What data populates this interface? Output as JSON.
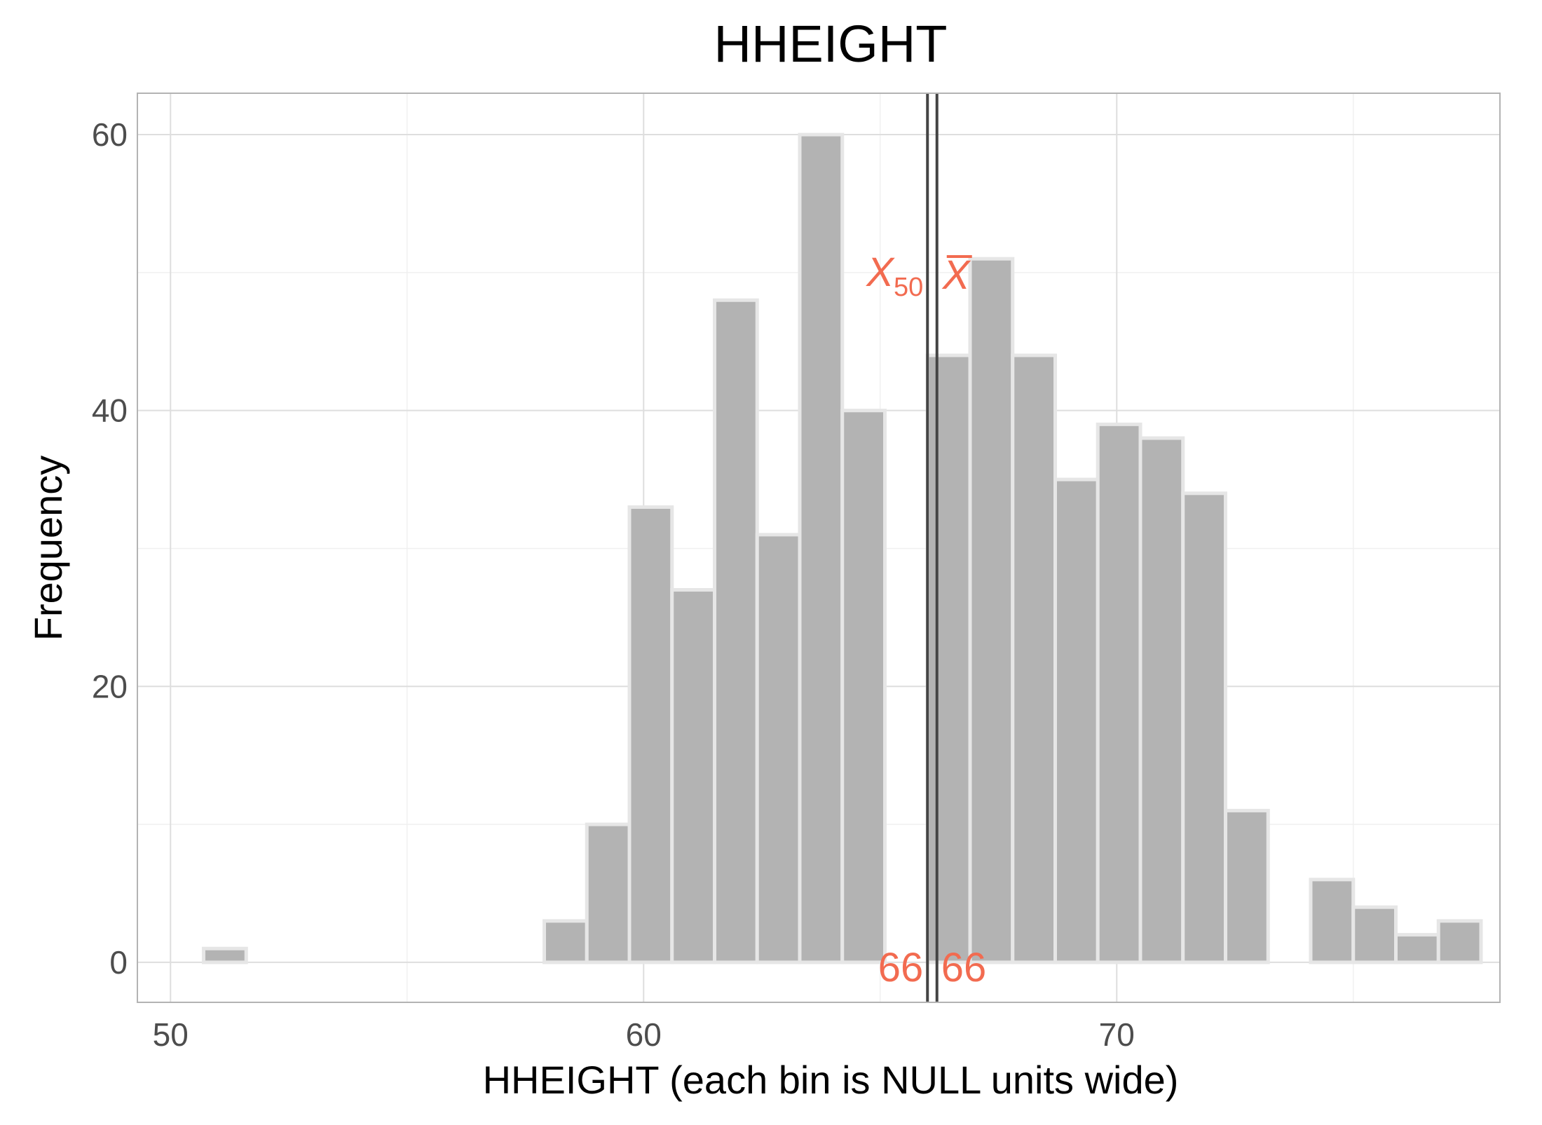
{
  "chart_data": {
    "type": "bar",
    "title": "HHEIGHT",
    "xlabel": "HHEIGHT (each bin is NULL units wide)",
    "ylabel": "Frequency",
    "xlim": [
      49.3,
      78.1
    ],
    "ylim": [
      -2.9,
      63
    ],
    "x_ticks": [
      {
        "value": 50,
        "label": "50"
      },
      {
        "value": 60,
        "label": "60"
      },
      {
        "value": 70,
        "label": "70"
      }
    ],
    "y_ticks": [
      {
        "value": 0,
        "label": "0"
      },
      {
        "value": 20,
        "label": "20"
      },
      {
        "value": 40,
        "label": "40"
      },
      {
        "value": 60,
        "label": "60"
      }
    ],
    "x_minor_grid": [
      55,
      65,
      75
    ],
    "y_minor_grid": [
      10,
      30,
      50
    ],
    "bin_width": 0.9,
    "bins": [
      {
        "x0": 50.7,
        "x1": 51.6,
        "count": 1
      },
      {
        "x0": 51.6,
        "x1": 52.5,
        "count": 0
      },
      {
        "x0": 52.5,
        "x1": 53.4,
        "count": 0
      },
      {
        "x0": 53.4,
        "x1": 54.3,
        "count": 0
      },
      {
        "x0": 54.3,
        "x1": 55.2,
        "count": 0
      },
      {
        "x0": 55.2,
        "x1": 56.1,
        "count": 0
      },
      {
        "x0": 56.1,
        "x1": 57.0,
        "count": 0
      },
      {
        "x0": 57.0,
        "x1": 57.9,
        "count": 0
      },
      {
        "x0": 57.9,
        "x1": 58.8,
        "count": 3
      },
      {
        "x0": 58.8,
        "x1": 59.7,
        "count": 10
      },
      {
        "x0": 59.7,
        "x1": 60.6,
        "count": 33
      },
      {
        "x0": 60.6,
        "x1": 61.5,
        "count": 27
      },
      {
        "x0": 61.5,
        "x1": 62.4,
        "count": 48
      },
      {
        "x0": 62.4,
        "x1": 63.3,
        "count": 31
      },
      {
        "x0": 63.3,
        "x1": 64.2,
        "count": 60
      },
      {
        "x0": 64.2,
        "x1": 65.1,
        "count": 40
      },
      {
        "x0": 65.1,
        "x1": 66.0,
        "count": 0
      },
      {
        "x0": 66.0,
        "x1": 66.9,
        "count": 44
      },
      {
        "x0": 66.9,
        "x1": 67.8,
        "count": 51
      },
      {
        "x0": 67.8,
        "x1": 68.7,
        "count": 44
      },
      {
        "x0": 68.7,
        "x1": 69.6,
        "count": 35
      },
      {
        "x0": 69.6,
        "x1": 70.5,
        "count": 39
      },
      {
        "x0": 70.5,
        "x1": 71.4,
        "count": 38
      },
      {
        "x0": 71.4,
        "x1": 72.3,
        "count": 34
      },
      {
        "x0": 72.3,
        "x1": 73.2,
        "count": 11
      },
      {
        "x0": 73.2,
        "x1": 74.1,
        "count": 0
      },
      {
        "x0": 74.1,
        "x1": 75.0,
        "count": 6
      },
      {
        "x0": 75.0,
        "x1": 75.9,
        "count": 4
      },
      {
        "x0": 75.9,
        "x1": 76.8,
        "count": 2
      },
      {
        "x0": 76.8,
        "x1": 77.7,
        "count": 3
      }
    ],
    "reference_lines": [
      {
        "stat": "median",
        "x": 66.0,
        "symbol": "X",
        "subscript": "50",
        "value_label": "66"
      },
      {
        "stat": "mean",
        "x": 66.2,
        "symbol": "X",
        "overline": true,
        "value_label": "66"
      }
    ],
    "colors": {
      "bar_fill": "#b3b3b3",
      "bar_outline": "#e6e6e6",
      "reference_line": "#444444",
      "annotation": "#f26b50",
      "panel_border": "#b3b3b3",
      "grid_major": "#dedede",
      "grid_minor": "#f0f0f0"
    },
    "grid": true,
    "legend": "none"
  }
}
